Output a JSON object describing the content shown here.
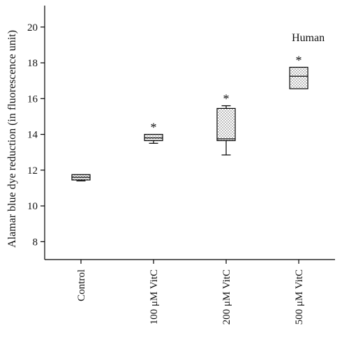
{
  "chart_data": {
    "type": "box",
    "ylabel": "Alamar blue dye reduction (in fluorescence unit)",
    "annotation": "Human",
    "ylim": [
      7,
      21.2
    ],
    "yticks": [
      8,
      10,
      12,
      14,
      16,
      18,
      20
    ],
    "categories": [
      "Control",
      "100 μM VitC",
      "200 μM VitC",
      "500 μM VitC"
    ],
    "boxes": [
      {
        "category": "Control",
        "min": 11.4,
        "q1": 11.45,
        "median": 11.6,
        "q3": 11.75,
        "max": 11.75,
        "marker": ""
      },
      {
        "category": "100 μM VitC",
        "min": 13.5,
        "q1": 13.65,
        "median": 13.8,
        "q3": 14.0,
        "max": 14.0,
        "marker": "*"
      },
      {
        "category": "200 μM VitC",
        "min": 12.85,
        "q1": 13.65,
        "median": 13.75,
        "q3": 15.45,
        "max": 15.6,
        "marker": "*"
      },
      {
        "category": "500 μM VitC",
        "min": 16.55,
        "q1": 16.55,
        "median": 17.25,
        "q3": 17.75,
        "max": 17.75,
        "marker": "*"
      }
    ]
  }
}
